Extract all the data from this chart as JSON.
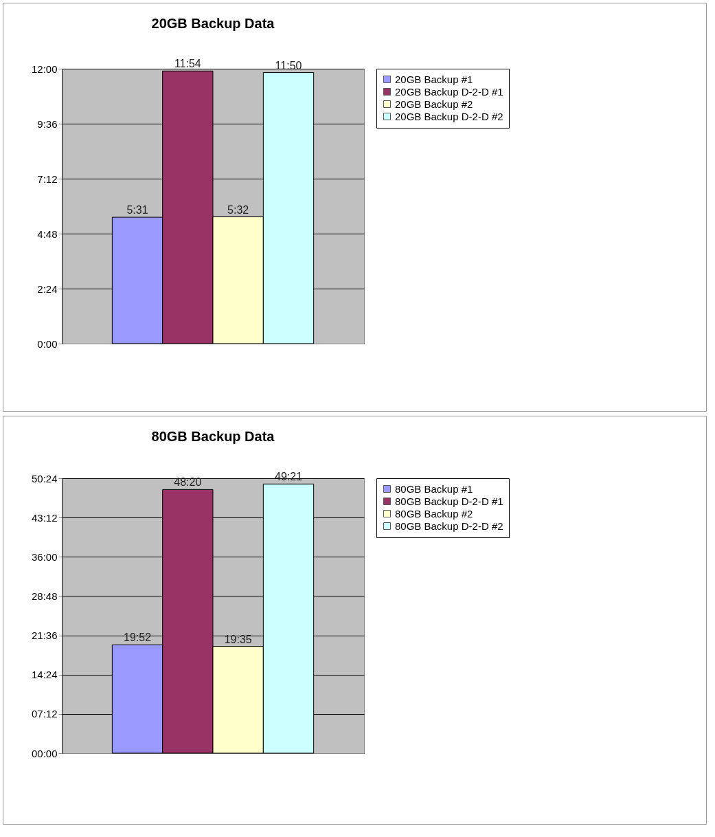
{
  "chart_data": [
    {
      "type": "bar",
      "title": "20GB Backup Data",
      "categories": [
        null
      ],
      "series": [
        {
          "name": "20GB Backup #1",
          "color": "#9999ff",
          "values": [
            5.5167
          ],
          "value_labels": [
            "5:31"
          ]
        },
        {
          "name": "20GB Backup D-2-D #1",
          "color": "#993366",
          "values": [
            11.9
          ],
          "value_labels": [
            "11:54"
          ]
        },
        {
          "name": "20GB Backup #2",
          "color": "#ffffcc",
          "values": [
            5.5333
          ],
          "value_labels": [
            "5:32"
          ]
        },
        {
          "name": "20GB Backup D-2-D #2",
          "color": "#ccffff",
          "values": [
            11.8333
          ],
          "value_labels": [
            "11:50"
          ]
        }
      ],
      "ylim": [
        0,
        12
      ],
      "yticks": [
        {
          "value": 0,
          "label": "0:00"
        },
        {
          "value": 2.4,
          "label": "2:24"
        },
        {
          "value": 4.8,
          "label": "4:48"
        },
        {
          "value": 7.2,
          "label": "7:12"
        },
        {
          "value": 9.6,
          "label": "9:36"
        },
        {
          "value": 12,
          "label": "12:00"
        }
      ],
      "grid": "y",
      "legend": "right"
    },
    {
      "type": "bar",
      "title": "80GB Backup Data",
      "categories": [
        null
      ],
      "series": [
        {
          "name": "80GB Backup #1",
          "color": "#9999ff",
          "values": [
            19.8667
          ],
          "value_labels": [
            "19:52"
          ]
        },
        {
          "name": "80GB Backup D-2-D #1",
          "color": "#993366",
          "values": [
            48.3333
          ],
          "value_labels": [
            "48:20"
          ]
        },
        {
          "name": "80GB Backup #2",
          "color": "#ffffcc",
          "values": [
            19.5833
          ],
          "value_labels": [
            "19:35"
          ]
        },
        {
          "name": "80GB Backup D-2-D #2",
          "color": "#ccffff",
          "values": [
            49.35
          ],
          "value_labels": [
            "49:21"
          ]
        }
      ],
      "ylim": [
        0,
        50.4
      ],
      "yticks": [
        {
          "value": 0,
          "label": "00:00"
        },
        {
          "value": 7.2,
          "label": "07:12"
        },
        {
          "value": 14.4,
          "label": "14:24"
        },
        {
          "value": 21.6,
          "label": "21:36"
        },
        {
          "value": 28.8,
          "label": "28:48"
        },
        {
          "value": 36,
          "label": "36:00"
        },
        {
          "value": 43.2,
          "label": "43:12"
        },
        {
          "value": 50.4,
          "label": "50:24"
        }
      ],
      "grid": "y",
      "legend": "right"
    }
  ]
}
